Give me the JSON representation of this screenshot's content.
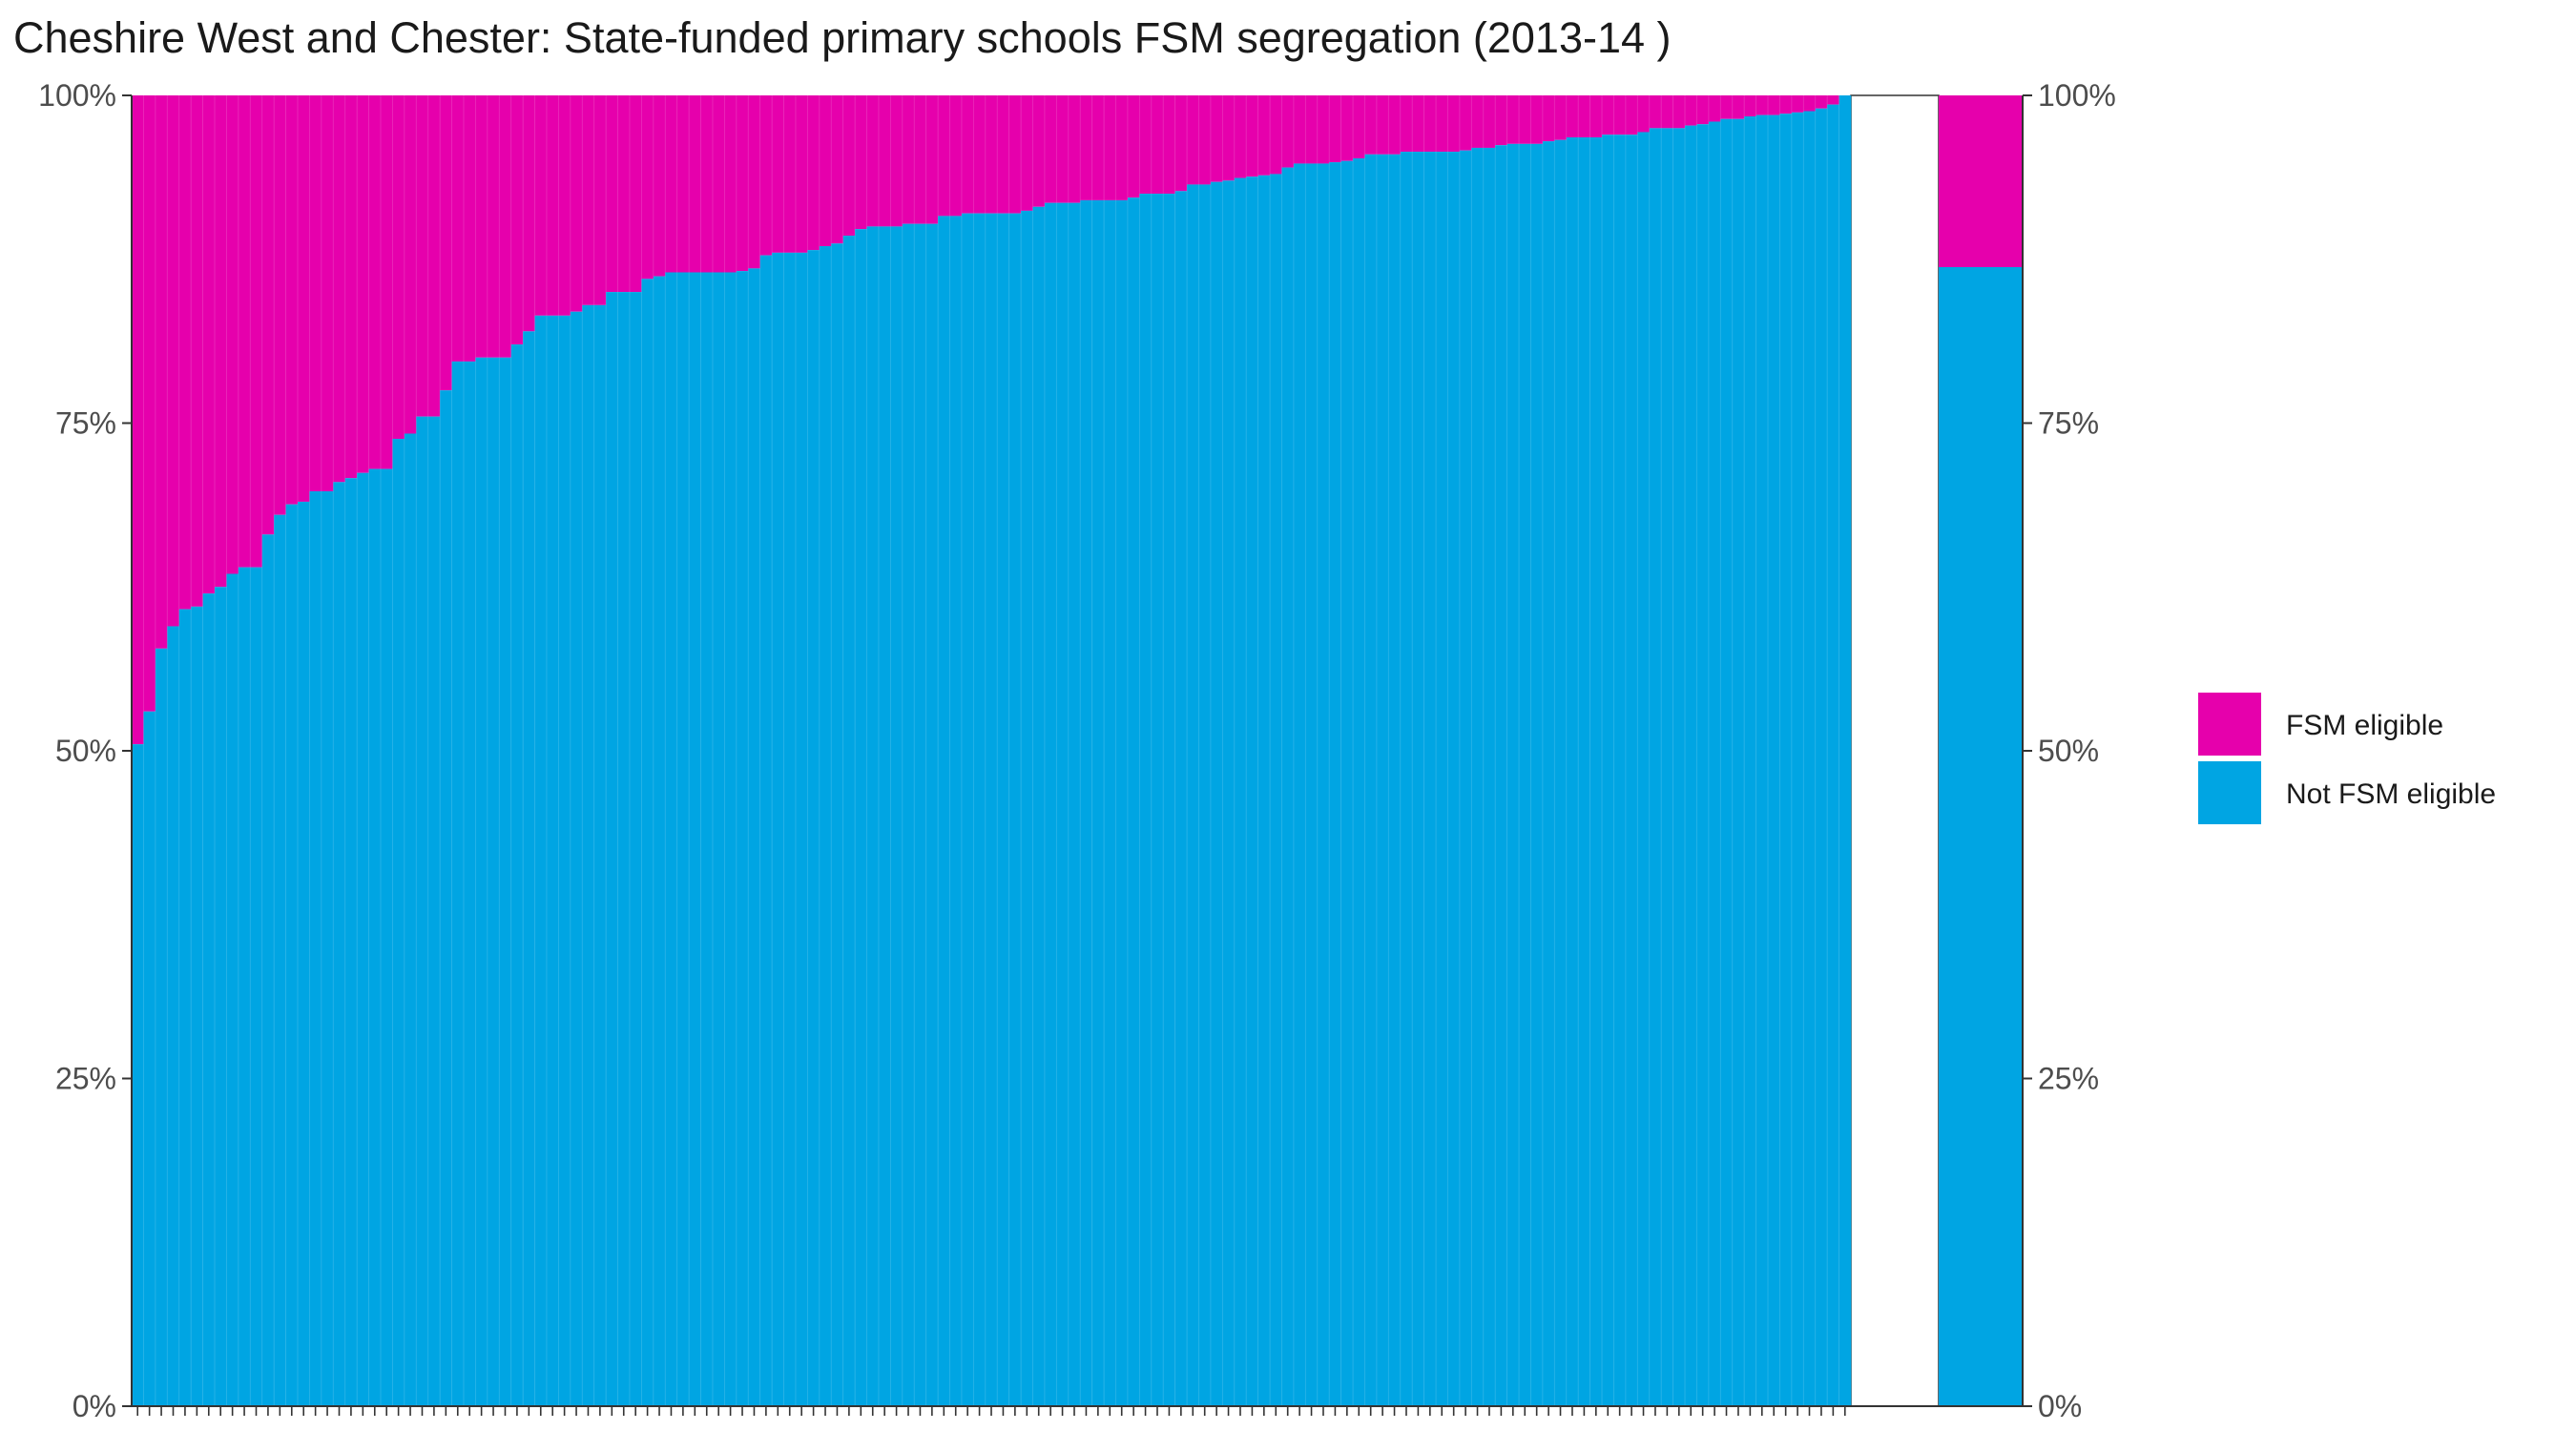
{
  "colors": {
    "fsm": "#e600ac",
    "not_fsm": "#00a5e3",
    "axis": "#333333"
  },
  "chart_data": {
    "type": "bar",
    "stacked": true,
    "title": "Cheshire West and Chester: State-funded primary schools FSM segregation (2013-14 )",
    "xlabel": "",
    "ylabel": "",
    "ylim": [
      0,
      100
    ],
    "y_ticks": [
      "0%",
      "25%",
      "50%",
      "75%",
      "100%"
    ],
    "legend_position": "right",
    "series": [
      {
        "name": "FSM eligible",
        "color": "#e600ac"
      },
      {
        "name": "Not FSM eligible",
        "color": "#00a5e3"
      }
    ],
    "school_not_fsm_percent": [
      50.5,
      53.0,
      57.8,
      59.5,
      60.8,
      61.0,
      62.0,
      62.5,
      63.5,
      64.0,
      64.0,
      66.5,
      68.0,
      68.8,
      69.0,
      69.8,
      69.8,
      70.5,
      70.8,
      71.2,
      71.5,
      71.5,
      73.8,
      74.2,
      75.5,
      75.5,
      77.5,
      79.7,
      79.7,
      80.0,
      80.0,
      80.0,
      81.0,
      82.0,
      83.2,
      83.2,
      83.2,
      83.5,
      84.0,
      84.0,
      85.0,
      85.0,
      85.0,
      86.0,
      86.2,
      86.5,
      86.5,
      86.5,
      86.5,
      86.5,
      86.5,
      86.6,
      86.8,
      87.8,
      88.0,
      88.0,
      88.0,
      88.2,
      88.5,
      88.7,
      89.3,
      89.8,
      90.0,
      90.0,
      90.0,
      90.2,
      90.2,
      90.2,
      90.8,
      90.8,
      91.0,
      91.0,
      91.0,
      91.0,
      91.0,
      91.2,
      91.5,
      91.8,
      91.8,
      91.8,
      92.0,
      92.0,
      92.0,
      92.0,
      92.2,
      92.5,
      92.5,
      92.5,
      92.7,
      93.2,
      93.2,
      93.4,
      93.5,
      93.7,
      93.8,
      93.9,
      94.0,
      94.5,
      94.8,
      94.8,
      94.8,
      94.9,
      95.0,
      95.2,
      95.5,
      95.5,
      95.5,
      95.7,
      95.7,
      95.7,
      95.7,
      95.7,
      95.8,
      96.0,
      96.0,
      96.2,
      96.3,
      96.3,
      96.3,
      96.5,
      96.6,
      96.8,
      96.8,
      96.8,
      97.0,
      97.0,
      97.0,
      97.2,
      97.5,
      97.5,
      97.5,
      97.7,
      97.8,
      98.0,
      98.2,
      98.2,
      98.4,
      98.5,
      98.5,
      98.6,
      98.7,
      98.8,
      99.0,
      99.3,
      100.0
    ],
    "overall_not_fsm_percent": 86.9
  }
}
